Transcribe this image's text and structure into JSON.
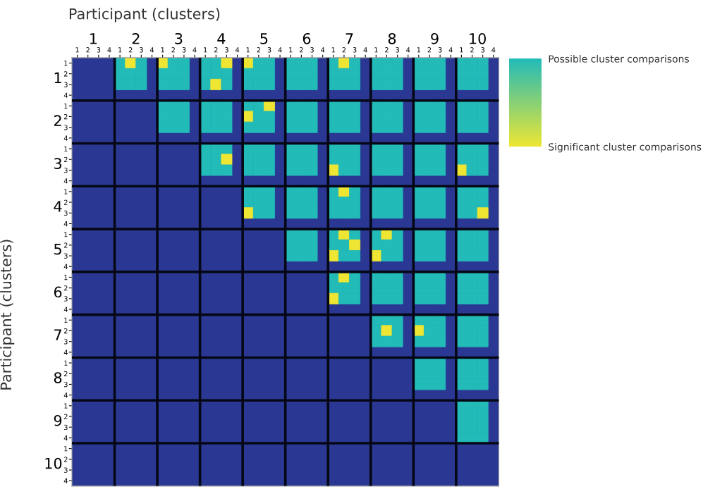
{
  "chart_data": {
    "type": "heatmap",
    "xlabel": "Participant (clusters)",
    "ylabel": "Participant (clusters)",
    "annotations": [
      "1",
      "2",
      "3",
      "4",
      "5",
      "6",
      "7",
      "8",
      "9",
      "10",
      "1",
      "2",
      "3",
      "4",
      "5",
      "6",
      "7",
      "8",
      "9",
      "10"
    ],
    "clim": [
      1,
      2
    ],
    "cticks": [
      {
        "value": 1,
        "label": "Possible cluster comparisons"
      },
      {
        "value": 2,
        "label": "Significant cluster comparisons"
      }
    ],
    "colors": [
      "#2a3894",
      "#22bbb8",
      "#eee633"
    ],
    "categories": [
      "1",
      "2",
      "3",
      "4",
      "1",
      "2",
      "3",
      "4",
      "1",
      "2",
      "3",
      "4",
      "1",
      "2",
      "3",
      "4",
      "1",
      "2",
      "3",
      "4",
      "1",
      "2",
      "3",
      "4",
      "1",
      "2",
      "3",
      "4",
      "1",
      "2",
      "3",
      "4",
      "1",
      "2",
      "3",
      "4",
      "1",
      "2",
      "3",
      "4"
    ],
    "y_categories": [
      "1",
      "2",
      "3",
      "4",
      "1",
      "2",
      "3",
      "4",
      "1",
      "2",
      "3",
      "4",
      "1",
      "2",
      "3",
      "4",
      "1",
      "2",
      "3",
      "4",
      "1",
      "2",
      "3",
      "4",
      "1",
      "2",
      "3",
      "4",
      "1",
      "2",
      "3",
      "4",
      "1",
      "2",
      "3",
      "4",
      "1",
      "2",
      "3",
      "4"
    ],
    "cells": [
      [
        null,
        null,
        null,
        null,
        1,
        2,
        1,
        null,
        2,
        1,
        1,
        null,
        1,
        1,
        2,
        null,
        2,
        1,
        1,
        null,
        1,
        1,
        1,
        null,
        1,
        2,
        1,
        null,
        1,
        1,
        1,
        null,
        1,
        1,
        1,
        null,
        1,
        1,
        1,
        null
      ],
      [
        null,
        null,
        null,
        null,
        1,
        1,
        1,
        null,
        1,
        1,
        1,
        null,
        1,
        1,
        1,
        null,
        1,
        1,
        1,
        null,
        1,
        1,
        1,
        null,
        1,
        1,
        1,
        null,
        1,
        1,
        1,
        null,
        1,
        1,
        1,
        null,
        1,
        1,
        1,
        null
      ],
      [
        null,
        null,
        null,
        null,
        1,
        1,
        1,
        null,
        1,
        1,
        1,
        null,
        1,
        2,
        1,
        null,
        1,
        1,
        1,
        null,
        1,
        1,
        1,
        null,
        1,
        1,
        1,
        null,
        1,
        1,
        1,
        null,
        1,
        1,
        1,
        null,
        1,
        1,
        1,
        null
      ],
      [
        null,
        null,
        null,
        null,
        null,
        null,
        null,
        null,
        null,
        null,
        null,
        null,
        null,
        null,
        null,
        null,
        null,
        null,
        null,
        null,
        null,
        null,
        null,
        null,
        null,
        null,
        null,
        null,
        null,
        null,
        null,
        null,
        null,
        null,
        null,
        null,
        null,
        null,
        null,
        null
      ],
      [
        null,
        null,
        null,
        null,
        null,
        null,
        null,
        null,
        1,
        1,
        1,
        null,
        1,
        1,
        1,
        null,
        1,
        1,
        2,
        null,
        1,
        1,
        1,
        null,
        1,
        1,
        1,
        null,
        1,
        1,
        1,
        null,
        1,
        1,
        1,
        null,
        1,
        1,
        1,
        null
      ],
      [
        null,
        null,
        null,
        null,
        null,
        null,
        null,
        null,
        1,
        1,
        1,
        null,
        1,
        1,
        1,
        null,
        2,
        1,
        1,
        null,
        1,
        1,
        1,
        null,
        1,
        1,
        1,
        null,
        1,
        1,
        1,
        null,
        1,
        1,
        1,
        null,
        1,
        1,
        1,
        null
      ],
      [
        null,
        null,
        null,
        null,
        null,
        null,
        null,
        null,
        1,
        1,
        1,
        null,
        1,
        1,
        1,
        null,
        1,
        1,
        1,
        null,
        1,
        1,
        1,
        null,
        1,
        1,
        1,
        null,
        1,
        1,
        1,
        null,
        1,
        1,
        1,
        null,
        1,
        1,
        1,
        null
      ],
      [
        null,
        null,
        null,
        null,
        null,
        null,
        null,
        null,
        null,
        null,
        null,
        null,
        null,
        null,
        null,
        null,
        null,
        null,
        null,
        null,
        null,
        null,
        null,
        null,
        null,
        null,
        null,
        null,
        null,
        null,
        null,
        null,
        null,
        null,
        null,
        null,
        null,
        null,
        null,
        null
      ],
      [
        null,
        null,
        null,
        null,
        null,
        null,
        null,
        null,
        null,
        null,
        null,
        null,
        1,
        1,
        1,
        null,
        1,
        1,
        1,
        null,
        1,
        1,
        1,
        null,
        1,
        1,
        1,
        null,
        1,
        1,
        1,
        null,
        1,
        1,
        1,
        null,
        1,
        1,
        1,
        null
      ],
      [
        null,
        null,
        null,
        null,
        null,
        null,
        null,
        null,
        null,
        null,
        null,
        null,
        1,
        1,
        2,
        null,
        1,
        1,
        1,
        null,
        1,
        1,
        1,
        null,
        1,
        1,
        1,
        null,
        1,
        1,
        1,
        null,
        1,
        1,
        1,
        null,
        1,
        1,
        1,
        null
      ],
      [
        null,
        null,
        null,
        null,
        null,
        null,
        null,
        null,
        null,
        null,
        null,
        null,
        1,
        1,
        1,
        null,
        1,
        1,
        1,
        null,
        1,
        1,
        1,
        null,
        2,
        1,
        1,
        null,
        1,
        1,
        1,
        null,
        1,
        1,
        1,
        null,
        2,
        1,
        1,
        null
      ],
      [
        null,
        null,
        null,
        null,
        null,
        null,
        null,
        null,
        null,
        null,
        null,
        null,
        null,
        null,
        null,
        null,
        null,
        null,
        null,
        null,
        null,
        null,
        null,
        null,
        null,
        null,
        null,
        null,
        null,
        null,
        null,
        null,
        null,
        null,
        null,
        null,
        null,
        null,
        null,
        null
      ],
      [
        null,
        null,
        null,
        null,
        null,
        null,
        null,
        null,
        null,
        null,
        null,
        null,
        null,
        null,
        null,
        null,
        1,
        1,
        1,
        null,
        1,
        1,
        1,
        null,
        1,
        2,
        1,
        null,
        1,
        1,
        1,
        null,
        1,
        1,
        1,
        null,
        1,
        1,
        1,
        null
      ],
      [
        null,
        null,
        null,
        null,
        null,
        null,
        null,
        null,
        null,
        null,
        null,
        null,
        null,
        null,
        null,
        null,
        1,
        1,
        1,
        null,
        1,
        1,
        1,
        null,
        1,
        1,
        1,
        null,
        1,
        1,
        1,
        null,
        1,
        1,
        1,
        null,
        1,
        1,
        1,
        null
      ],
      [
        null,
        null,
        null,
        null,
        null,
        null,
        null,
        null,
        null,
        null,
        null,
        null,
        null,
        null,
        null,
        null,
        2,
        1,
        1,
        null,
        1,
        1,
        1,
        null,
        1,
        1,
        1,
        null,
        1,
        1,
        1,
        null,
        1,
        1,
        1,
        null,
        1,
        1,
        2,
        null
      ],
      [
        null,
        null,
        null,
        null,
        null,
        null,
        null,
        null,
        null,
        null,
        null,
        null,
        null,
        null,
        null,
        null,
        null,
        null,
        null,
        null,
        null,
        null,
        null,
        null,
        null,
        null,
        null,
        null,
        null,
        null,
        null,
        null,
        null,
        null,
        null,
        null,
        null,
        null,
        null,
        null
      ],
      [
        null,
        null,
        null,
        null,
        null,
        null,
        null,
        null,
        null,
        null,
        null,
        null,
        null,
        null,
        null,
        null,
        null,
        null,
        null,
        null,
        1,
        1,
        1,
        null,
        1,
        2,
        1,
        null,
        1,
        2,
        1,
        null,
        1,
        1,
        1,
        null,
        1,
        1,
        1,
        null
      ],
      [
        null,
        null,
        null,
        null,
        null,
        null,
        null,
        null,
        null,
        null,
        null,
        null,
        null,
        null,
        null,
        null,
        null,
        null,
        null,
        null,
        1,
        1,
        1,
        null,
        1,
        1,
        2,
        null,
        1,
        1,
        1,
        null,
        1,
        1,
        1,
        null,
        1,
        1,
        1,
        null
      ],
      [
        null,
        null,
        null,
        null,
        null,
        null,
        null,
        null,
        null,
        null,
        null,
        null,
        null,
        null,
        null,
        null,
        null,
        null,
        null,
        null,
        1,
        1,
        1,
        null,
        2,
        1,
        1,
        null,
        2,
        1,
        1,
        null,
        1,
        1,
        1,
        null,
        1,
        1,
        1,
        null
      ],
      [
        null,
        null,
        null,
        null,
        null,
        null,
        null,
        null,
        null,
        null,
        null,
        null,
        null,
        null,
        null,
        null,
        null,
        null,
        null,
        null,
        null,
        null,
        null,
        null,
        null,
        null,
        null,
        null,
        null,
        null,
        null,
        null,
        null,
        null,
        null,
        null,
        null,
        null,
        null,
        null
      ],
      [
        null,
        null,
        null,
        null,
        null,
        null,
        null,
        null,
        null,
        null,
        null,
        null,
        null,
        null,
        null,
        null,
        null,
        null,
        null,
        null,
        null,
        null,
        null,
        null,
        1,
        2,
        1,
        null,
        1,
        1,
        1,
        null,
        1,
        1,
        1,
        null,
        1,
        1,
        1,
        null
      ],
      [
        null,
        null,
        null,
        null,
        null,
        null,
        null,
        null,
        null,
        null,
        null,
        null,
        null,
        null,
        null,
        null,
        null,
        null,
        null,
        null,
        null,
        null,
        null,
        null,
        1,
        1,
        1,
        null,
        1,
        1,
        1,
        null,
        1,
        1,
        1,
        null,
        1,
        1,
        1,
        null
      ],
      [
        null,
        null,
        null,
        null,
        null,
        null,
        null,
        null,
        null,
        null,
        null,
        null,
        null,
        null,
        null,
        null,
        null,
        null,
        null,
        null,
        null,
        null,
        null,
        null,
        2,
        1,
        1,
        null,
        1,
        1,
        1,
        null,
        1,
        1,
        1,
        null,
        1,
        1,
        1,
        null
      ],
      [
        null,
        null,
        null,
        null,
        null,
        null,
        null,
        null,
        null,
        null,
        null,
        null,
        null,
        null,
        null,
        null,
        null,
        null,
        null,
        null,
        null,
        null,
        null,
        null,
        null,
        null,
        null,
        null,
        null,
        null,
        null,
        null,
        null,
        null,
        null,
        null,
        null,
        null,
        null,
        null
      ],
      [
        null,
        null,
        null,
        null,
        null,
        null,
        null,
        null,
        null,
        null,
        null,
        null,
        null,
        null,
        null,
        null,
        null,
        null,
        null,
        null,
        null,
        null,
        null,
        null,
        null,
        null,
        null,
        null,
        1,
        1,
        1,
        null,
        1,
        1,
        1,
        null,
        1,
        1,
        1,
        null
      ],
      [
        null,
        null,
        null,
        null,
        null,
        null,
        null,
        null,
        null,
        null,
        null,
        null,
        null,
        null,
        null,
        null,
        null,
        null,
        null,
        null,
        null,
        null,
        null,
        null,
        null,
        null,
        null,
        null,
        1,
        2,
        1,
        null,
        2,
        1,
        1,
        null,
        1,
        1,
        1,
        null
      ],
      [
        null,
        null,
        null,
        null,
        null,
        null,
        null,
        null,
        null,
        null,
        null,
        null,
        null,
        null,
        null,
        null,
        null,
        null,
        null,
        null,
        null,
        null,
        null,
        null,
        null,
        null,
        null,
        null,
        1,
        1,
        1,
        null,
        1,
        1,
        1,
        null,
        1,
        1,
        1,
        null
      ],
      [
        null,
        null,
        null,
        null,
        null,
        null,
        null,
        null,
        null,
        null,
        null,
        null,
        null,
        null,
        null,
        null,
        null,
        null,
        null,
        null,
        null,
        null,
        null,
        null,
        null,
        null,
        null,
        null,
        null,
        null,
        null,
        null,
        null,
        null,
        null,
        null,
        null,
        null,
        null,
        null
      ],
      [
        null,
        null,
        null,
        null,
        null,
        null,
        null,
        null,
        null,
        null,
        null,
        null,
        null,
        null,
        null,
        null,
        null,
        null,
        null,
        null,
        null,
        null,
        null,
        null,
        null,
        null,
        null,
        null,
        null,
        null,
        null,
        null,
        1,
        1,
        1,
        null,
        1,
        1,
        1,
        null
      ],
      [
        null,
        null,
        null,
        null,
        null,
        null,
        null,
        null,
        null,
        null,
        null,
        null,
        null,
        null,
        null,
        null,
        null,
        null,
        null,
        null,
        null,
        null,
        null,
        null,
        null,
        null,
        null,
        null,
        null,
        null,
        null,
        null,
        1,
        1,
        1,
        null,
        1,
        1,
        1,
        null
      ],
      [
        null,
        null,
        null,
        null,
        null,
        null,
        null,
        null,
        null,
        null,
        null,
        null,
        null,
        null,
        null,
        null,
        null,
        null,
        null,
        null,
        null,
        null,
        null,
        null,
        null,
        null,
        null,
        null,
        null,
        null,
        null,
        null,
        1,
        1,
        1,
        null,
        1,
        1,
        1,
        null
      ],
      [
        null,
        null,
        null,
        null,
        null,
        null,
        null,
        null,
        null,
        null,
        null,
        null,
        null,
        null,
        null,
        null,
        null,
        null,
        null,
        null,
        null,
        null,
        null,
        null,
        null,
        null,
        null,
        null,
        null,
        null,
        null,
        null,
        null,
        null,
        null,
        null,
        null,
        null,
        null,
        null
      ],
      [
        null,
        null,
        null,
        null,
        null,
        null,
        null,
        null,
        null,
        null,
        null,
        null,
        null,
        null,
        null,
        null,
        null,
        null,
        null,
        null,
        null,
        null,
        null,
        null,
        null,
        null,
        null,
        null,
        null,
        null,
        null,
        null,
        null,
        null,
        null,
        null,
        1,
        1,
        1,
        null
      ],
      [
        null,
        null,
        null,
        null,
        null,
        null,
        null,
        null,
        null,
        null,
        null,
        null,
        null,
        null,
        null,
        null,
        null,
        null,
        null,
        null,
        null,
        null,
        null,
        null,
        null,
        null,
        null,
        null,
        null,
        null,
        null,
        null,
        null,
        null,
        null,
        null,
        1,
        1,
        1,
        null
      ],
      [
        null,
        null,
        null,
        null,
        null,
        null,
        null,
        null,
        null,
        null,
        null,
        null,
        null,
        null,
        null,
        null,
        null,
        null,
        null,
        null,
        null,
        null,
        null,
        null,
        null,
        null,
        null,
        null,
        null,
        null,
        null,
        null,
        null,
        null,
        null,
        null,
        1,
        1,
        1,
        null
      ],
      [
        null,
        null,
        null,
        null,
        null,
        null,
        null,
        null,
        null,
        null,
        null,
        null,
        null,
        null,
        null,
        null,
        null,
        null,
        null,
        null,
        null,
        null,
        null,
        null,
        null,
        null,
        null,
        null,
        null,
        null,
        null,
        null,
        null,
        null,
        null,
        null,
        1,
        1,
        1,
        null
      ],
      [
        null,
        null,
        null,
        null,
        null,
        null,
        null,
        null,
        null,
        null,
        null,
        null,
        null,
        null,
        null,
        null,
        null,
        null,
        null,
        null,
        null,
        null,
        null,
        null,
        null,
        null,
        null,
        null,
        null,
        null,
        null,
        null,
        null,
        null,
        null,
        null,
        null,
        null,
        null,
        null
      ],
      [
        null,
        null,
        null,
        null,
        null,
        null,
        null,
        null,
        null,
        null,
        null,
        null,
        null,
        null,
        null,
        null,
        null,
        null,
        null,
        null,
        null,
        null,
        null,
        null,
        null,
        null,
        null,
        null,
        null,
        null,
        null,
        null,
        null,
        null,
        null,
        null,
        null,
        null,
        null,
        null
      ],
      [
        null,
        null,
        null,
        null,
        null,
        null,
        null,
        null,
        null,
        null,
        null,
        null,
        null,
        null,
        null,
        null,
        null,
        null,
        null,
        null,
        null,
        null,
        null,
        null,
        null,
        null,
        null,
        null,
        null,
        null,
        null,
        null,
        null,
        null,
        null,
        null,
        null,
        null,
        null,
        null
      ],
      [
        null,
        null,
        null,
        null,
        null,
        null,
        null,
        null,
        null,
        null,
        null,
        null,
        null,
        null,
        null,
        null,
        null,
        null,
        null,
        null,
        null,
        null,
        null,
        null,
        null,
        null,
        null,
        null,
        null,
        null,
        null,
        null,
        null,
        null,
        null,
        null,
        null,
        null,
        null,
        null
      ]
    ],
    "grid": true
  }
}
